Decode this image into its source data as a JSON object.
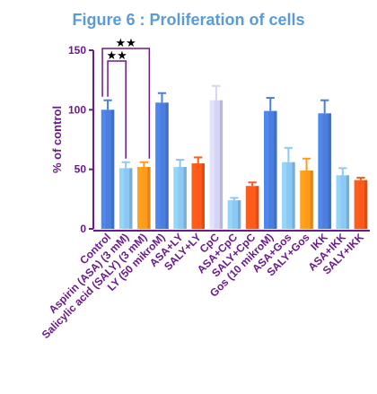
{
  "chart_data": {
    "type": "bar",
    "title": "Figure 6 : Proliferation of cells",
    "title_color": "#5b9bd5",
    "ylabel": "% of control",
    "xlabel": "",
    "ylim": [
      0,
      150
    ],
    "yticks": [
      0,
      50,
      100,
      150
    ],
    "grid": false,
    "axis_color": "#6a1a8c",
    "categories": [
      "Control",
      "Aspirin (ASA) (3 mM)",
      "Salicylic acid (SALY) (3 mM)",
      "LY (50 mikroM)",
      "ASA+LY",
      "SALY+LY",
      "CpC",
      "ASA+CpC",
      "SALY+CpC",
      "Gos (10 mikroM)",
      "ASA+Gos",
      "SALY+Gos",
      "IKK",
      "ASA+IKK",
      "SALY+IKK"
    ],
    "values": [
      100,
      51,
      52,
      106,
      52,
      55,
      108,
      24,
      36,
      99,
      56,
      49,
      97,
      45,
      41
    ],
    "errors": [
      8,
      5,
      4,
      8,
      6,
      5,
      12,
      2,
      3,
      11,
      12,
      10,
      11,
      6,
      2
    ],
    "colors": [
      "#4a7fe0",
      "#8cc8f4",
      "#ff9a1a",
      "#4a7fe0",
      "#8cc8f4",
      "#ff5a1a",
      "#d4d4f6",
      "#8cc8f4",
      "#ff5a1a",
      "#4a7fe0",
      "#8cc8f4",
      "#ff9a1a",
      "#4a7fe0",
      "#8cc8f4",
      "#ff5a1a"
    ],
    "error_colors": [
      "#4a7fe0",
      "#8cc8f4",
      "#ff9a1a",
      "#4a7fe0",
      "#8cc8f4",
      "#ff5a1a",
      "#d4d4f6",
      "#8cc8f4",
      "#ff5a1a",
      "#4a7fe0",
      "#8cc8f4",
      "#ff9a1a",
      "#4a7fe0",
      "#8cc8f4",
      "#ff5a1a"
    ],
    "significance": [
      {
        "from": "Control",
        "to": "Salicylic acid (SALY) (3 mM)",
        "label": "★★"
      },
      {
        "from": "Control",
        "to": "Aspirin (ASA) (3 mM)",
        "label": "★★"
      }
    ]
  }
}
